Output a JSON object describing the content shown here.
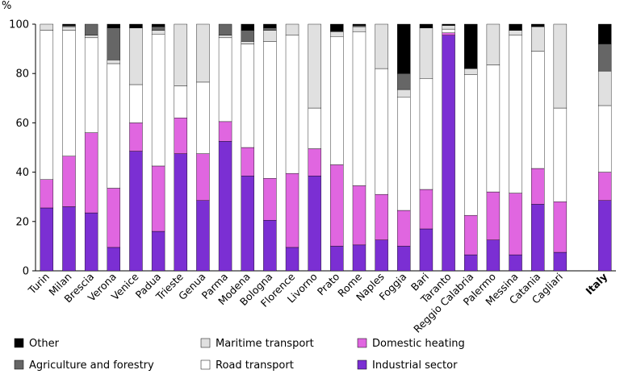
{
  "chart_data": {
    "type": "bar",
    "stacked": true,
    "title": "",
    "ylabel": "%",
    "xlabel": "",
    "ylim": [
      0,
      100
    ],
    "yticks": [
      0,
      20,
      40,
      60,
      80,
      100
    ],
    "grid": false,
    "legend_placement": "bottom",
    "categories": [
      "Turin",
      "Milan",
      "Brescia",
      "Verona",
      "Venice",
      "Padua",
      "Trieste",
      "Genua",
      "Parma",
      "Modena",
      "Bologna",
      "Florence",
      "Livorno",
      "Prato",
      "Rome",
      "Naples",
      "Foggia",
      "Bari",
      "Taranto",
      "Reggio Calabria",
      "Palermo",
      "Messina",
      "Catania",
      "Cagliari",
      "Italy"
    ],
    "bold_categories": [
      "Italy"
    ],
    "series": [
      {
        "name": "Industrial sector",
        "color": "#7b2fd3",
        "values": [
          25.5,
          26,
          23.5,
          9.5,
          48.5,
          16,
          47.5,
          28.5,
          52.5,
          38.5,
          20.5,
          9.5,
          38.5,
          10,
          10.5,
          12.5,
          10,
          17,
          95.5,
          6.5,
          12.5,
          6.5,
          27,
          7.5,
          28.5
        ]
      },
      {
        "name": "Domestic heating",
        "color": "#e066e0",
        "values": [
          11.5,
          20.5,
          32.5,
          24,
          11.5,
          26.5,
          14.5,
          19,
          8,
          11.5,
          17,
          30,
          11,
          33,
          24,
          18.5,
          14.5,
          16,
          1,
          16,
          19.5,
          25,
          14.5,
          20.5,
          11.5
        ]
      },
      {
        "name": "Road transport",
        "color": "#ffffff",
        "values": [
          60.5,
          51,
          38.5,
          50.5,
          15.5,
          53.5,
          13,
          29,
          34,
          42,
          55.5,
          56,
          16.5,
          52,
          62.5,
          51,
          46,
          45,
          1.5,
          57,
          51.5,
          64,
          47.5,
          38,
          27
        ]
      },
      {
        "name": "Maritime transport",
        "color": "#e0e0e0",
        "values": [
          2.5,
          1.5,
          1,
          1.5,
          23,
          1.5,
          25,
          23.5,
          1,
          1,
          4.5,
          4.5,
          34,
          2,
          2,
          18,
          3,
          20.5,
          1.5,
          2.5,
          16.5,
          2,
          10,
          34,
          14
        ]
      },
      {
        "name": "Agriculture and forestry",
        "color": "#666666",
        "values": [
          0,
          0.5,
          4.5,
          13,
          0,
          1.5,
          0,
          0,
          4.5,
          4.5,
          1,
          0,
          0,
          0,
          0.5,
          0,
          6.5,
          0,
          0,
          0,
          0,
          0,
          0,
          0,
          11
        ]
      },
      {
        "name": "Other",
        "color": "#000000",
        "values": [
          0,
          0.5,
          0,
          1.5,
          1.5,
          1,
          0,
          0,
          0,
          2.5,
          1.5,
          0,
          0,
          3,
          0.5,
          0,
          20,
          1.5,
          0.5,
          18,
          0,
          2.5,
          1,
          0,
          8
        ]
      }
    ],
    "legend_order": [
      "Other",
      "Maritime transport",
      "Domestic heating",
      "Agriculture and forestry",
      "Road transport",
      "Industrial sector"
    ]
  }
}
